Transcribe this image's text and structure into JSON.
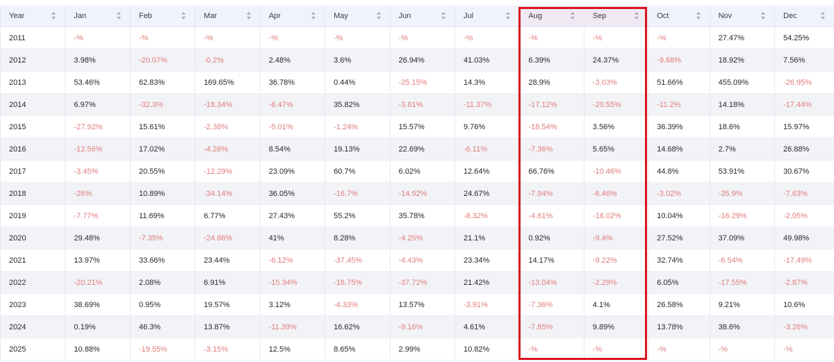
{
  "table": {
    "columns": [
      "Year",
      "Jan",
      "Feb",
      "Mar",
      "Apr",
      "May",
      "Jun",
      "Jul",
      "Aug",
      "Sep",
      "Oct",
      "Nov",
      "Dec"
    ],
    "rows": [
      {
        "year": "2011",
        "values": [
          "-%",
          "-%",
          "-%",
          "-%",
          "-%",
          "-%",
          "-%",
          "-%",
          "-%",
          "-%",
          "27.47%",
          "54.25%"
        ]
      },
      {
        "year": "2012",
        "values": [
          "3.98%",
          "-20.07%",
          "-0.2%",
          "2.48%",
          "3.6%",
          "26.94%",
          "41.03%",
          "6.39%",
          "24.37%",
          "-9.68%",
          "18.92%",
          "7.56%"
        ]
      },
      {
        "year": "2013",
        "values": [
          "53.46%",
          "62.83%",
          "169.65%",
          "36.78%",
          "0.44%",
          "-25.15%",
          "14.3%",
          "28.9%",
          "-3.03%",
          "51.66%",
          "455.09%",
          "-26.95%"
        ]
      },
      {
        "year": "2014",
        "values": [
          "6.97%",
          "-32.3%",
          "-18.34%",
          "-6.47%",
          "35.82%",
          "-3.61%",
          "-11.37%",
          "-17.12%",
          "-20.55%",
          "-11.2%",
          "14.18%",
          "-17.44%"
        ]
      },
      {
        "year": "2015",
        "values": [
          "-27.92%",
          "15.61%",
          "-2.38%",
          "-5.01%",
          "-1.24%",
          "15.57%",
          "9.76%",
          "-18.54%",
          "3.56%",
          "36.39%",
          "18.6%",
          "15.97%"
        ]
      },
      {
        "year": "2016",
        "values": [
          "-12.56%",
          "17.02%",
          "-4.26%",
          "8.54%",
          "19.13%",
          "22.69%",
          "-6.11%",
          "-7.36%",
          "5.65%",
          "14.68%",
          "2.7%",
          "26.88%"
        ]
      },
      {
        "year": "2017",
        "values": [
          "-3.45%",
          "20.55%",
          "-12.29%",
          "23.09%",
          "60.7%",
          "6.02%",
          "12.64%",
          "66.76%",
          "-10.46%",
          "44.8%",
          "53.91%",
          "30.67%"
        ]
      },
      {
        "year": "2018",
        "values": [
          "-26%",
          "10.89%",
          "-34.14%",
          "36.05%",
          "-16.7%",
          "-14.92%",
          "24.67%",
          "-7.94%",
          "-6.46%",
          "-3.02%",
          "-35.9%",
          "-7.63%"
        ]
      },
      {
        "year": "2019",
        "values": [
          "-7.77%",
          "11.69%",
          "6.77%",
          "27.43%",
          "55.2%",
          "35.78%",
          "-8.32%",
          "-4.61%",
          "-16.02%",
          "10.04%",
          "-16.29%",
          "-2.05%"
        ]
      },
      {
        "year": "2020",
        "values": [
          "29.48%",
          "-7.35%",
          "-24.86%",
          "41%",
          "8.28%",
          "-4.25%",
          "21.1%",
          "0.92%",
          "-9.4%",
          "27.52%",
          "37.09%",
          "49.98%"
        ]
      },
      {
        "year": "2021",
        "values": [
          "13.97%",
          "33.66%",
          "23.44%",
          "-6.12%",
          "-37.45%",
          "-4.43%",
          "23.34%",
          "14.17%",
          "-9.22%",
          "32.74%",
          "-6.54%",
          "-17.49%"
        ]
      },
      {
        "year": "2022",
        "values": [
          "-20.21%",
          "2.08%",
          "6.91%",
          "-15.34%",
          "-16.75%",
          "-37.72%",
          "21.42%",
          "-13.04%",
          "-2.29%",
          "6.05%",
          "-17.55%",
          "-2.87%"
        ]
      },
      {
        "year": "2023",
        "values": [
          "38.69%",
          "0.95%",
          "19.57%",
          "3.12%",
          "-4.33%",
          "13.57%",
          "-3.91%",
          "-7.36%",
          "4.1%",
          "26.58%",
          "9.21%",
          "10.6%"
        ]
      },
      {
        "year": "2024",
        "values": [
          "0.19%",
          "46.3%",
          "13.87%",
          "-11.39%",
          "16.62%",
          "-9.16%",
          "4.61%",
          "-7.85%",
          "9.89%",
          "13.78%",
          "38.6%",
          "-3.26%"
        ]
      },
      {
        "year": "2025",
        "values": [
          "10.88%",
          "-19.55%",
          "-3.15%",
          "12.5%",
          "8.65%",
          "2.99%",
          "10.82%",
          "-%",
          "-%",
          "-%",
          "-%",
          "-%"
        ]
      }
    ],
    "highlighted_columns": [
      "Aug",
      "Sep"
    ]
  },
  "colors": {
    "negative_text": "#e07b7b",
    "positive_text": "#262626",
    "header_bg": "#f0f3fb",
    "striped_row_bg": "#f2f3f7",
    "highlight_border": "#d9141e"
  },
  "icons": {
    "sort": "sort-arrows-icon"
  }
}
